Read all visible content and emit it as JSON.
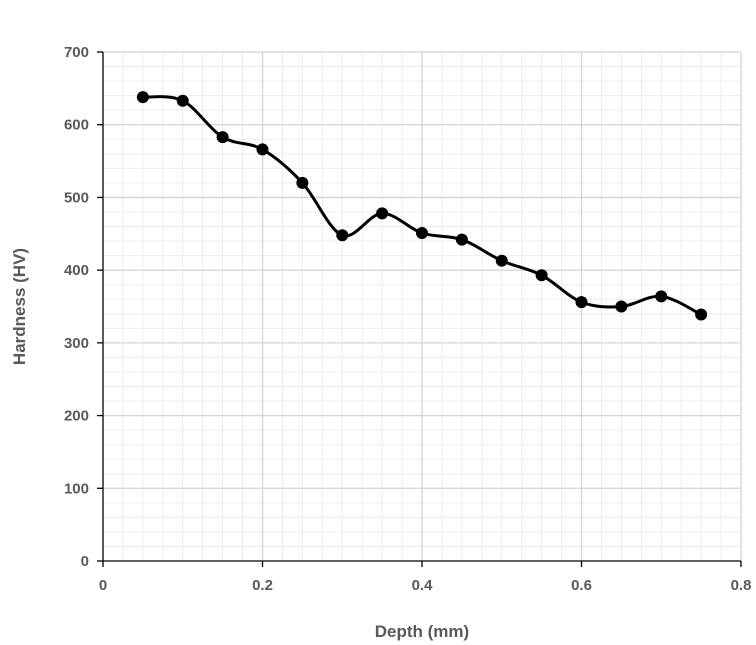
{
  "chart_data": {
    "type": "scatter",
    "title": "",
    "xlabel": "Depth (mm)",
    "ylabel": "Hardness (HV)",
    "xlim": [
      0,
      0.8
    ],
    "ylim": [
      0,
      700
    ],
    "x_ticks": [
      0,
      0.2,
      0.4,
      0.6,
      0.8
    ],
    "x_tick_labels": [
      "0",
      "0.2",
      "0.4",
      "0.6",
      "0.8"
    ],
    "y_ticks": [
      0,
      100,
      200,
      300,
      400,
      500,
      600,
      700
    ],
    "y_tick_labels": [
      "0",
      "100",
      "200",
      "300",
      "400",
      "500",
      "600",
      "700"
    ],
    "x_minor_step": 0.025,
    "y_minor_step": 20,
    "grid": true,
    "legend": "none",
    "smoothed_line": true,
    "series": [
      {
        "color": "#000000",
        "x": [
          0.05,
          0.1,
          0.15,
          0.2,
          0.25,
          0.3,
          0.35,
          0.4,
          0.45,
          0.5,
          0.55,
          0.6,
          0.65,
          0.7,
          0.75
        ],
        "y": [
          638,
          633,
          583,
          566,
          520,
          448,
          478,
          451,
          442,
          413,
          393,
          356,
          350,
          364,
          339
        ]
      }
    ]
  }
}
